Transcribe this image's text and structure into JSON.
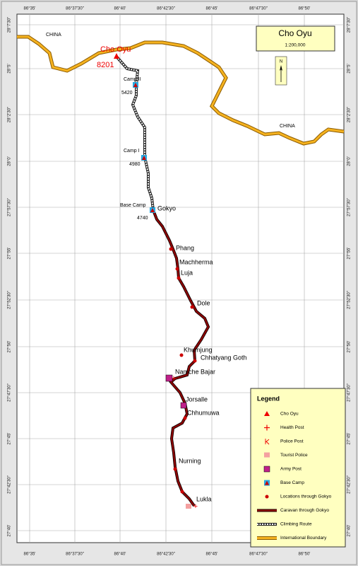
{
  "map": {
    "title": "Cho Oyu",
    "scale": "1:200,000",
    "north": "N",
    "longitude_labels": [
      "86°35'",
      "86°37'30\"",
      "86°40'",
      "86°42'30\"",
      "86°45'",
      "86°47'30\"",
      "86°50'"
    ],
    "latitude_labels": [
      "28°7'30\"",
      "28°5'",
      "28°2'30\"",
      "28°0'",
      "27°57'30\"",
      "27°55'",
      "27°52'30\"",
      "27°50'",
      "27°47'30\"",
      "27°45'",
      "27°42'30\"",
      "27°40'"
    ],
    "places": [
      "CHINA",
      "CHINA",
      "Cho Oyu",
      "8201",
      "Camp II",
      "5420",
      "Camp I",
      "4980",
      "Base Camp",
      "4740",
      "Gokyo",
      "Phang",
      "Machherma",
      "Luja",
      "Dole",
      "Khumjung",
      "Chhatyang Goth",
      "Namche Bajar",
      "Jorsalle",
      "Chhumuwa",
      "Nurning",
      "Lukla"
    ],
    "legend": {
      "title": "Legend",
      "items": [
        "Cho Oyu",
        "Health Post",
        "Police Post",
        "Tourist Police",
        "Army Post",
        "Base Camp",
        "Locations through Gokyo",
        "Caravan through Gokyo",
        "Climbing Route",
        "International Boundary"
      ]
    }
  }
}
